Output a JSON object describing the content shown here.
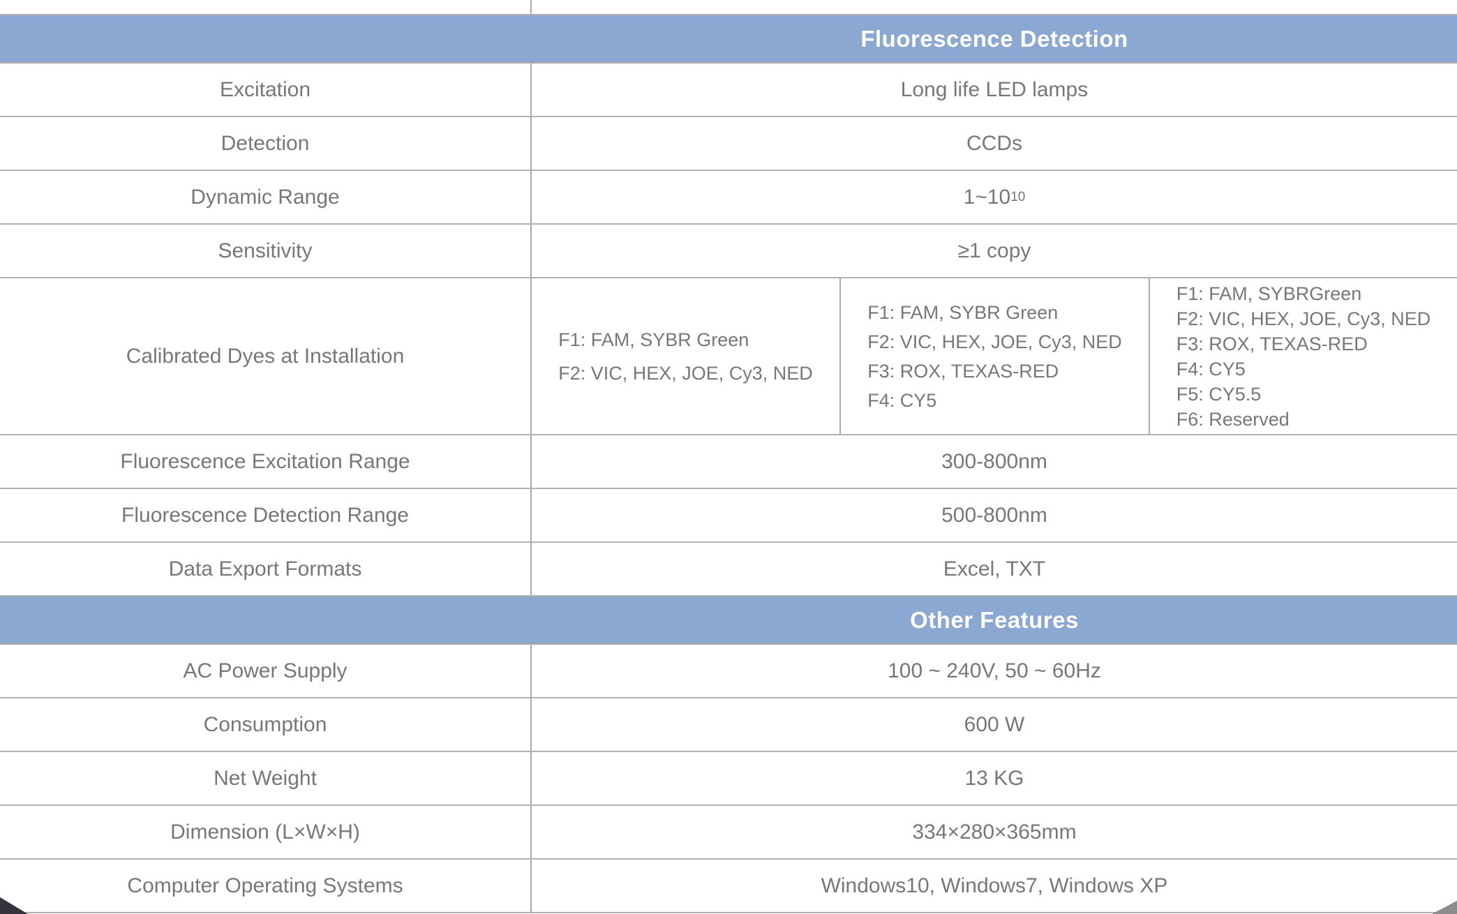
{
  "colors": {
    "section_header_bg": "#8BA8D3",
    "section_header_text": "#ffffff",
    "body_text": "#76777A",
    "border": "#b1b1b1"
  },
  "section1": {
    "title": "Fluorescence Detection",
    "rows": [
      {
        "label": "Excitation",
        "value": "Long life LED lamps"
      },
      {
        "label": "Detection",
        "value": "CCDs"
      },
      {
        "label": "Dynamic Range",
        "value_base": "1~10",
        "value_sup": "10"
      },
      {
        "label": "Sensitivity",
        "value": "≥1 copy"
      }
    ]
  },
  "dyes": {
    "label": "Calibrated Dyes at Installation",
    "columns": [
      {
        "lines": [
          "F1:  FAM, SYBR Green",
          "F2:  VIC, HEX, JOE, Cy3, NED"
        ]
      },
      {
        "lines": [
          "F1:  FAM, SYBR Green",
          "F2:  VIC, HEX, JOE, Cy3, NED",
          "F3:  ROX, TEXAS-RED",
          "F4:  CY5"
        ]
      },
      {
        "lines": [
          "F1:  FAM,  SYBRGreen",
          "F2:  VIC, HEX, JOE, Cy3, NED",
          "F3:  ROX, TEXAS-RED",
          "F4:  CY5",
          "F5:  CY5.5",
          "F6:  Reserved"
        ]
      }
    ]
  },
  "section1b": {
    "rows": [
      {
        "label": "Fluorescence Excitation Range",
        "value": "300-800nm"
      },
      {
        "label": "Fluorescence Detection Range",
        "value": "500-800nm"
      },
      {
        "label": "Data Export Formats",
        "value": "Excel, TXT"
      }
    ]
  },
  "section2": {
    "title": "Other Features",
    "rows": [
      {
        "label": "AC Power Supply",
        "value": "100 ~ 240V, 50 ~ 60Hz"
      },
      {
        "label": "Consumption",
        "value": "600 W"
      },
      {
        "label": "Net Weight",
        "value": "13 KG"
      },
      {
        "label": "Dimension (L×W×H)",
        "value": "334×280×365mm"
      },
      {
        "label": "Computer Operating Systems",
        "value": "Windows10, Windows7, Windows XP"
      }
    ]
  }
}
